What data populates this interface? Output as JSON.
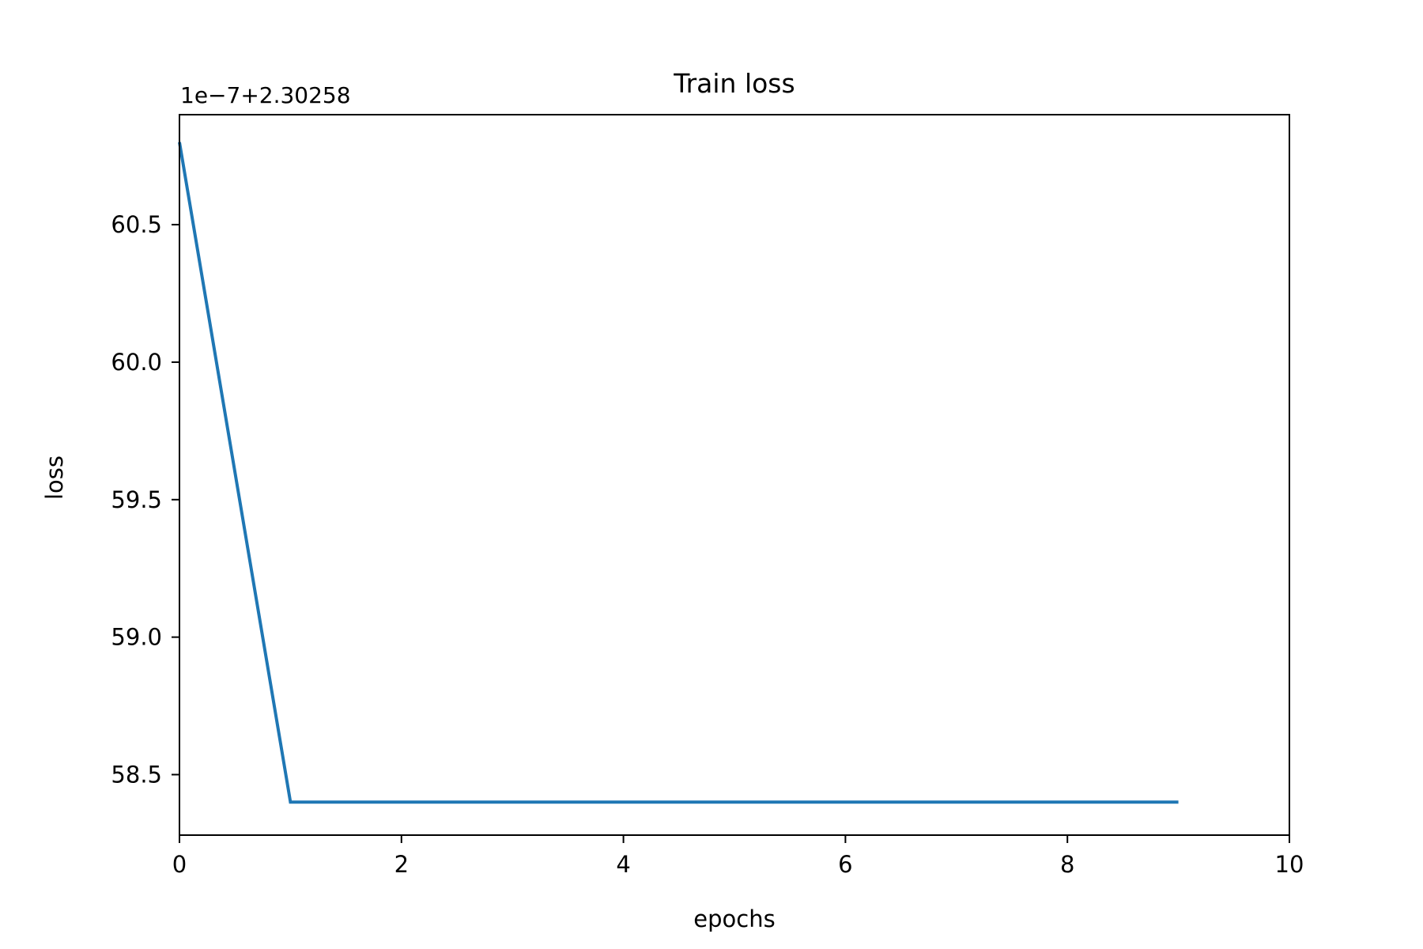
{
  "chart_data": {
    "type": "line",
    "title": "Train loss",
    "xlabel": "epochs",
    "ylabel": "loss",
    "offset_text": "1e−7+2.30258",
    "xlim": [
      0,
      10
    ],
    "ylim": [
      58.28,
      60.9
    ],
    "x_ticks": [
      0,
      2,
      4,
      6,
      8,
      10
    ],
    "x_tick_labels": [
      "0",
      "2",
      "4",
      "6",
      "8",
      "10"
    ],
    "y_ticks": [
      58.5,
      59.0,
      59.5,
      60.0,
      60.5
    ],
    "y_tick_labels": [
      "58.5",
      "59.0",
      "59.5",
      "60.0",
      "60.5"
    ],
    "grid": false,
    "series": [
      {
        "color": "#1f77b4",
        "x": [
          0,
          1,
          2,
          3,
          4,
          5,
          6,
          7,
          8,
          9
        ],
        "y": [
          60.8,
          58.4,
          58.4,
          58.4,
          58.4,
          58.4,
          58.4,
          58.4,
          58.4,
          58.4
        ]
      }
    ]
  }
}
